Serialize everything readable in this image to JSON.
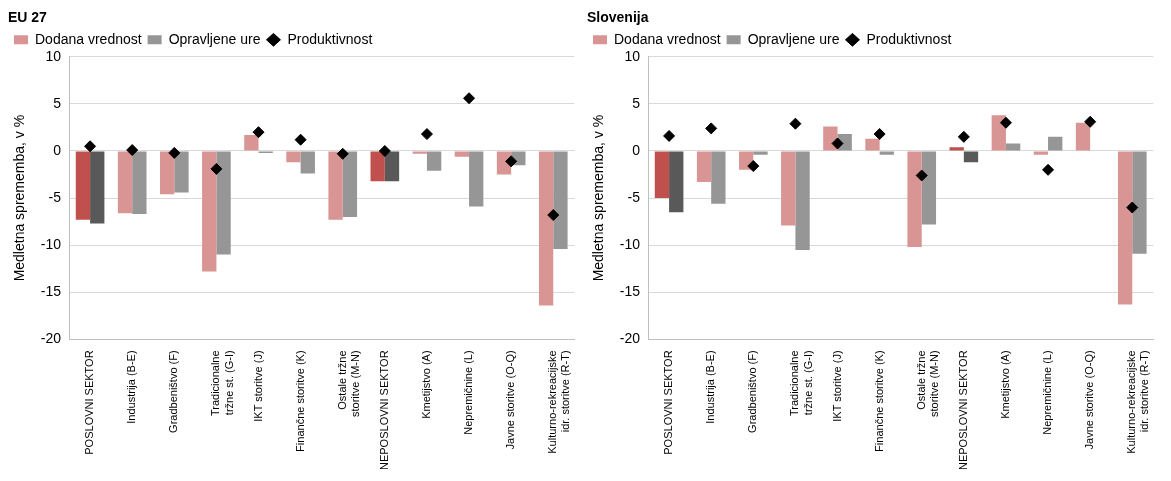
{
  "chart_data": [
    {
      "type": "bar",
      "title": "EU 27",
      "ylabel": "Medletna sprememba, v %",
      "categories": [
        "POSLOVNI SEKTOR",
        "Industrija (B-E)",
        "Gradbeništvo (F)",
        "Tradicionalne\ntržne st. (G-I)",
        "IKT storitve (J)",
        "Finančne storitve (K)",
        "Ostale tržne\nstoritve (M-N)",
        "NEPOSLOVNI SEKTOR",
        "Kmetijstvo (A)",
        "Nepremičnine (L)",
        "Javne storitve (O-Q)",
        "Kulturno-rekreacijske\nidr. storitve (R-T)"
      ],
      "series": [
        {
          "name": "Dodana vrednost",
          "color": "#d99594",
          "colors": [
            "#c0504d",
            "#d99594",
            "#d99594",
            "#d99594",
            "#d99594",
            "#d99594",
            "#d99594",
            "#c0504d",
            "#d99594",
            "#d99594",
            "#d99594",
            "#d99594"
          ],
          "values": [
            -7.3,
            -6.6,
            -4.6,
            -12.8,
            1.7,
            -1.2,
            -7.3,
            -3.2,
            -0.3,
            -0.6,
            -2.5,
            -16.4
          ]
        },
        {
          "name": "Opravljene ure",
          "color": "#969696",
          "colors": [
            "#595959",
            "#969696",
            "#969696",
            "#969696",
            "#969696",
            "#969696",
            "#969696",
            "#595959",
            "#969696",
            "#969696",
            "#969696",
            "#969696"
          ],
          "values": [
            -7.7,
            -6.7,
            -4.4,
            -11.0,
            -0.2,
            -2.4,
            -7.0,
            -3.2,
            -2.1,
            -5.9,
            -1.5,
            -10.4
          ]
        },
        {
          "name": "Produktivnost",
          "type": "scatter",
          "color": "#000000",
          "x": [
            "POSLOVNI SEKTOR",
            "Industrija (B-E)",
            "Gradbeništvo (F)",
            "Tradicionalne\ntržne st. (G-I)",
            "IKT storitve (J)",
            "Finančne storitve (K)",
            "Ostale tržne\nstoritve (M-N)",
            "NEPOSLOVNI SEKTOR",
            "Kmetijstvo (A)",
            "Nepremičnine (L)",
            "Javne storitve (O-Q)",
            "Kulturno-rekreacijske\nidr. storitve (R-T)"
          ],
          "values": [
            0.5,
            0.1,
            -0.2,
            -1.9,
            2.0,
            1.2,
            -0.3,
            0.0,
            1.8,
            5.6,
            -1.1,
            -6.8
          ]
        }
      ],
      "ylim": [
        -20,
        10
      ],
      "yticks": [
        -20,
        -15,
        -10,
        -5,
        0,
        5,
        10
      ],
      "grid": "y",
      "legend": "top",
      "marker": "diamond"
    },
    {
      "type": "bar",
      "title": "Slovenija",
      "ylabel": "Medletna sprememba, v %",
      "categories": [
        "POSLOVNI SEKTOR",
        "Industrija (B-E)",
        "Gradbeništvo (F)",
        "Tradicionalne\ntržne st. (G-I)",
        "IKT storitve (J)",
        "Finančne storitve (K)",
        "Ostale tržne\nstoritve (M-N)",
        "NEPOSLOVNI SEKTOR",
        "Kmetijstvo (A)",
        "Nepremičnine (L)",
        "Javne storitve (O-Q)",
        "Kulturno-rekreacijske\nidr. storitve (R-T)"
      ],
      "series": [
        {
          "name": "Dodana vrednost",
          "color": "#d99594",
          "colors": [
            "#c0504d",
            "#d99594",
            "#d99594",
            "#d99594",
            "#d99594",
            "#d99594",
            "#d99594",
            "#c0504d",
            "#d99594",
            "#d99594",
            "#d99594",
            "#d99594"
          ],
          "values": [
            -5.0,
            -3.3,
            -2.0,
            -7.9,
            2.6,
            1.3,
            -10.2,
            0.4,
            3.8,
            -0.4,
            3.0,
            -16.3
          ]
        },
        {
          "name": "Opravljene ure",
          "color": "#969696",
          "colors": [
            "#595959",
            "#969696",
            "#969696",
            "#969696",
            "#969696",
            "#969696",
            "#969696",
            "#595959",
            "#969696",
            "#969696",
            "#969696",
            "#969696"
          ],
          "values": [
            -6.5,
            -5.6,
            -0.4,
            -10.5,
            1.8,
            -0.4,
            -7.8,
            -1.2,
            0.8,
            1.5,
            0.0,
            -10.9
          ]
        },
        {
          "name": "Produktivnost",
          "type": "scatter",
          "color": "#000000",
          "x": [
            "POSLOVNI SEKTOR",
            "Industrija (B-E)",
            "Gradbeništvo (F)",
            "Tradicionalne\ntržne st. (G-I)",
            "IKT storitve (J)",
            "Finančne storitve (K)",
            "Ostale tržne\nstoritve (M-N)",
            "NEPOSLOVNI SEKTOR",
            "Kmetijstvo (A)",
            "Nepremičnine (L)",
            "Javne storitve (O-Q)",
            "Kulturno-rekreacijske\nidr. storitve (R-T)"
          ],
          "values": [
            1.6,
            2.4,
            -1.6,
            2.9,
            0.8,
            1.8,
            -2.6,
            1.5,
            3.0,
            -2.0,
            3.1,
            -6.0
          ]
        }
      ],
      "ylim": [
        -20,
        10
      ],
      "yticks": [
        -20,
        -15,
        -10,
        -5,
        0,
        5,
        10
      ],
      "grid": "y",
      "legend": "top",
      "marker": "diamond"
    }
  ]
}
